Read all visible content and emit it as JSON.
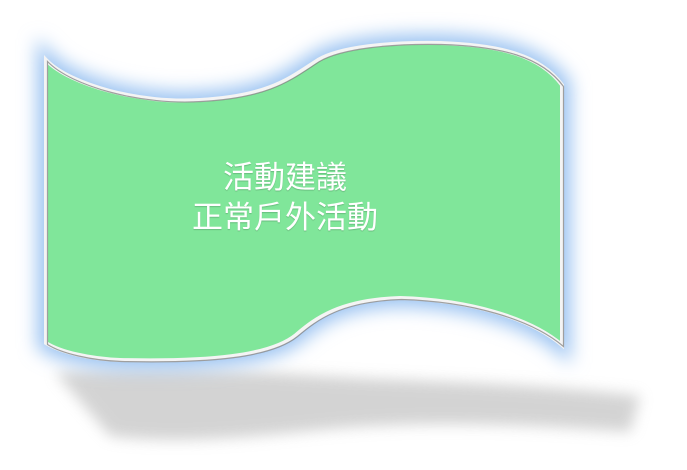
{
  "banner": {
    "line1": "活動建議",
    "line2": "正常戶外活動",
    "fill_color": "#80e69a",
    "glow_color": "#9dc4f2",
    "text_color": "#ffffff"
  }
}
